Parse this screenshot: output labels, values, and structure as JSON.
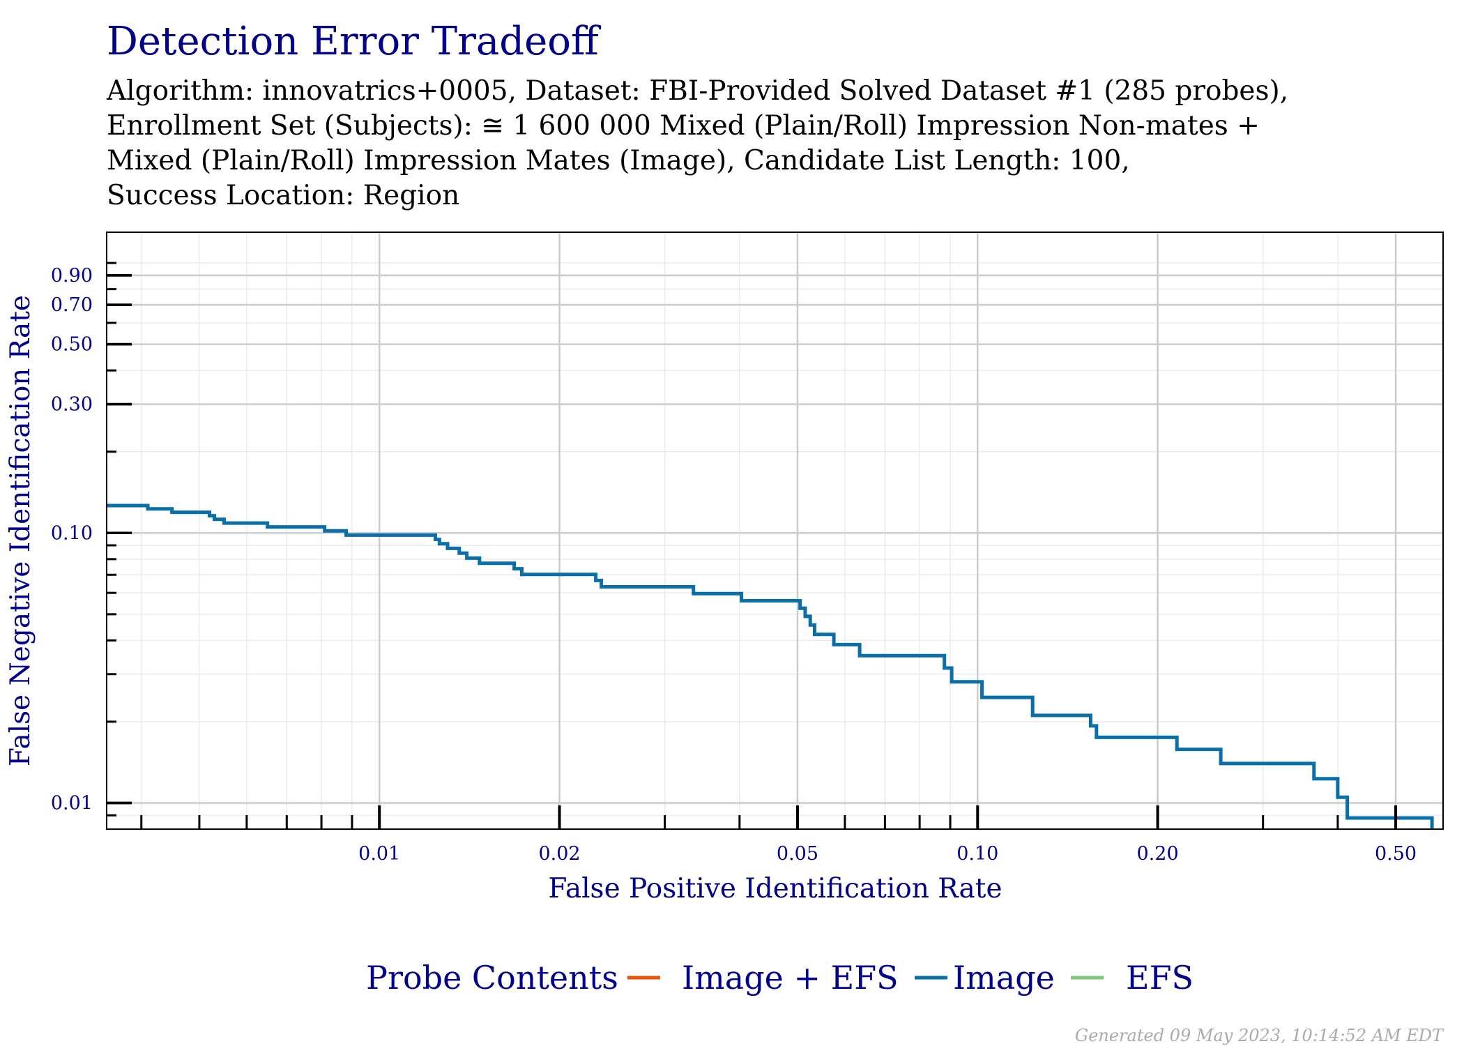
{
  "title": "Detection Error Tradeoff",
  "subtitle_lines": [
    "Algorithm: innovatrics+0005, Dataset: FBI-Provided Solved Dataset #1 (285 probes),",
    "Enrollment Set (Subjects): ≅ 1 600 000 Mixed (Plain/Roll) Impression Non-mates +",
    "Mixed (Plain/Roll) Impression Mates (Image), Candidate List Length: 100,",
    "Success Location: Region"
  ],
  "footer": "Generated 09 May 2023, 10:14:52 AM EDT",
  "legend": {
    "title": "Probe Contents",
    "items": [
      {
        "label": "Image + EFS",
        "color": "#E6550D"
      },
      {
        "label": "Image",
        "color": "#0A6EA8"
      },
      {
        "label": "EFS",
        "color": "#7FC97F"
      }
    ]
  },
  "chart_data": {
    "type": "line",
    "xlabel": "False Positive Identification Rate",
    "ylabel": "False Negative Identification Rate",
    "x_scale": "log",
    "y_scale": "log",
    "xlim": [
      0.0035,
      0.6
    ],
    "ylim": [
      0.008,
      1.3
    ],
    "x_ticks": [
      0.01,
      0.02,
      0.05,
      0.1,
      0.2,
      0.5
    ],
    "x_tick_labels": [
      "0.01",
      "0.02",
      "0.05",
      "0.10",
      "0.20",
      "0.50"
    ],
    "y_ticks": [
      0.01,
      0.1,
      0.3,
      0.5,
      0.7,
      0.9
    ],
    "y_tick_labels": [
      "0.01",
      "0.10",
      "0.30",
      "0.50",
      "0.70",
      "0.90"
    ],
    "grid": true,
    "legend_position": "bottom",
    "series": [
      {
        "name": "Image",
        "color": "#0A6EA8",
        "step": true,
        "points": [
          [
            0.0035,
            0.1263
          ],
          [
            0.0041,
            0.1228
          ],
          [
            0.0045,
            0.1193
          ],
          [
            0.0052,
            0.1158
          ],
          [
            0.0053,
            0.1123
          ],
          [
            0.0055,
            0.1088
          ],
          [
            0.0065,
            0.1053
          ],
          [
            0.0081,
            0.1018
          ],
          [
            0.0088,
            0.0982
          ],
          [
            0.0124,
            0.0947
          ],
          [
            0.0126,
            0.0912
          ],
          [
            0.013,
            0.0877
          ],
          [
            0.0136,
            0.0842
          ],
          [
            0.014,
            0.0807
          ],
          [
            0.0147,
            0.0772
          ],
          [
            0.0168,
            0.0737
          ],
          [
            0.0173,
            0.0702
          ],
          [
            0.023,
            0.0667
          ],
          [
            0.0235,
            0.0632
          ],
          [
            0.0335,
            0.0596
          ],
          [
            0.0403,
            0.0561
          ],
          [
            0.0505,
            0.0526
          ],
          [
            0.0515,
            0.0491
          ],
          [
            0.0525,
            0.0456
          ],
          [
            0.0534,
            0.0421
          ],
          [
            0.0575,
            0.0386
          ],
          [
            0.0635,
            0.0351
          ],
          [
            0.088,
            0.0316
          ],
          [
            0.0905,
            0.0281
          ],
          [
            0.1017,
            0.0246
          ],
          [
            0.1236,
            0.0211
          ],
          [
            0.1545,
            0.0193
          ],
          [
            0.158,
            0.0175
          ],
          [
            0.2154,
            0.0158
          ],
          [
            0.255,
            0.014
          ],
          [
            0.365,
            0.0123
          ],
          [
            0.4,
            0.0105
          ],
          [
            0.415,
            0.0088
          ],
          [
            0.575,
            0.007
          ],
          [
            0.6,
            0.007
          ]
        ]
      }
    ]
  }
}
